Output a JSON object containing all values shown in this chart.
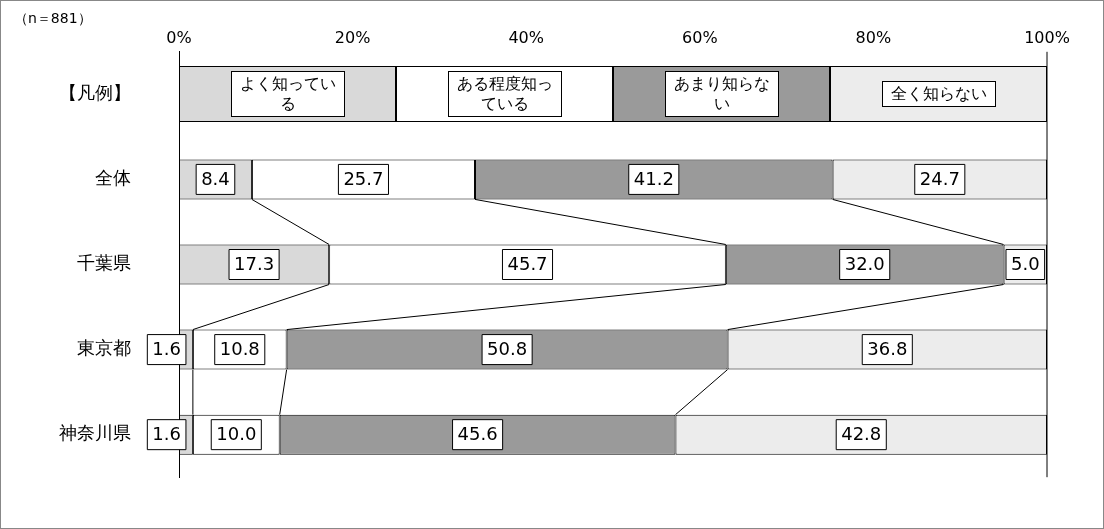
{
  "chart_data": {
    "type": "bar",
    "orientation": "horizontal",
    "stacked": true,
    "legend": "top",
    "legend_title": "【凡例】",
    "annotations": [
      "（n＝881）"
    ],
    "categories": [
      "全体",
      "千葉県",
      "東京都",
      "神奈川県"
    ],
    "xlim": [
      0,
      100
    ],
    "xticks": [
      {
        "value": 0,
        "label": "0%"
      },
      {
        "value": 20,
        "label": "20%"
      },
      {
        "value": 40,
        "label": "40%"
      },
      {
        "value": 60,
        "label": "60%"
      },
      {
        "value": 80,
        "label": "80%"
      },
      {
        "value": 100,
        "label": "100%"
      }
    ],
    "grid": false,
    "series": [
      {
        "name": "よく知っている",
        "color": "#d9d9d9",
        "values": [
          8.4,
          17.3,
          1.6,
          1.6
        ],
        "value_labels": [
          "8.4",
          "17.3",
          "1.6",
          "1.6"
        ]
      },
      {
        "name": "ある程度知っている",
        "color": "#ffffff",
        "values": [
          25.7,
          45.7,
          10.8,
          10.0
        ],
        "value_labels": [
          "25.7",
          "45.7",
          "10.8",
          "10.0"
        ]
      },
      {
        "name": "あまり知らない",
        "color": "#9a9a9a",
        "values": [
          41.2,
          32.0,
          50.8,
          45.6
        ],
        "value_labels": [
          "41.2",
          "32.0",
          "50.8",
          "45.6"
        ]
      },
      {
        "name": "全く知らない",
        "color": "#ececec",
        "values": [
          24.7,
          5.0,
          36.8,
          42.8
        ],
        "value_labels": [
          "24.7",
          "5.0",
          "36.8",
          "42.8"
        ]
      }
    ]
  }
}
